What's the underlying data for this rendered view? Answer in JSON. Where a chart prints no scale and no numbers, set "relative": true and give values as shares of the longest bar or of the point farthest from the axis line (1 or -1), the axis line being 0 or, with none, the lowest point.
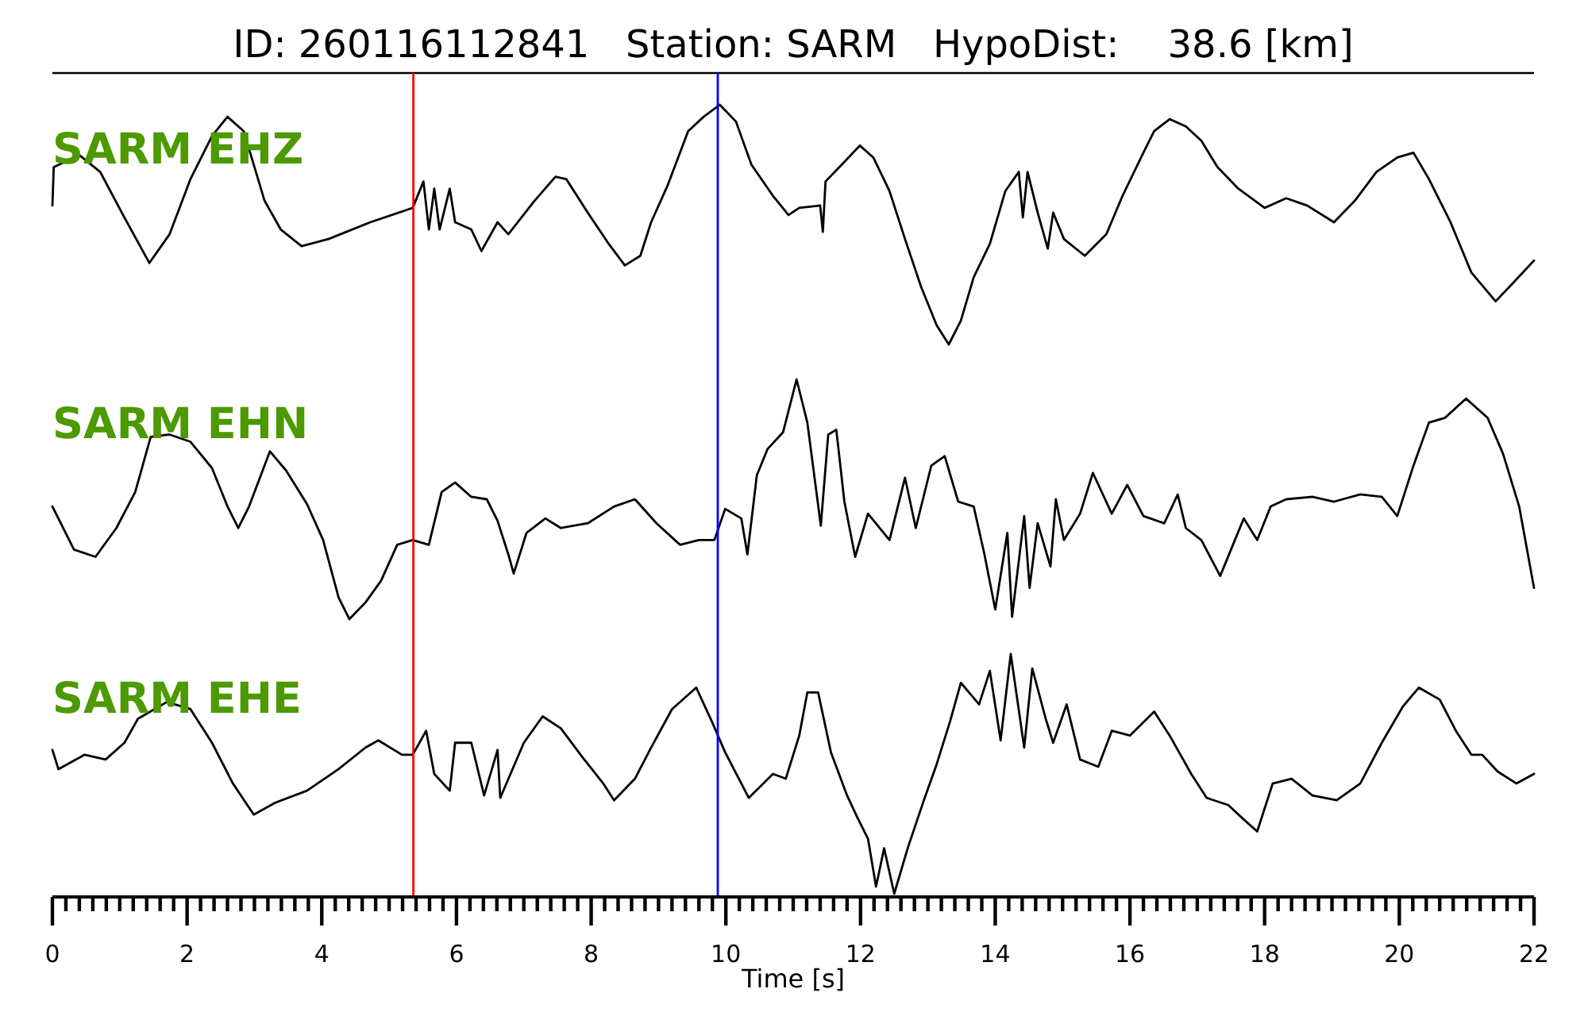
{
  "chart_data": [
    {
      "type": "line",
      "title": "ID: 260116112841   Station: SARM   HypoDist:    38.6 [km]",
      "annotations": [
        "SARM EHZ"
      ],
      "relative": true,
      "xlim": [
        0,
        22
      ],
      "tick_labels": false,
      "series": [
        {
          "color": "#000000",
          "x": [
            0,
            0.02,
            0.4,
            0.71,
            1.03,
            1.44,
            1.74,
            2.05,
            2.37,
            2.6,
            2.84,
            3.15,
            3.39,
            3.7,
            4.1,
            4.72,
            5.35,
            5.51,
            5.59,
            5.67,
            5.75,
            5.9,
            5.98,
            6.22,
            6.37,
            6.61,
            6.77,
            7.16,
            7.47,
            7.63,
            7.95,
            8.26,
            8.5,
            8.73,
            8.89,
            9.13,
            9.44,
            9.67,
            9.91,
            10.15,
            10.38,
            10.7,
            10.93,
            11.09,
            11.4,
            11.44,
            11.48,
            11.72,
            11.99,
            12.19,
            12.43,
            12.66,
            12.9,
            13.13,
            13.31,
            13.49,
            13.68,
            13.92,
            14.15,
            14.35,
            14.41,
            14.48,
            14.63,
            14.78,
            14.86,
            15.02,
            15.33,
            15.65,
            15.89,
            16.2,
            16.36,
            16.59,
            16.83,
            17.06,
            17.3,
            17.61,
            18.0,
            18.32,
            18.63,
            19.03,
            19.34,
            19.66,
            19.97,
            20.21,
            20.44,
            20.76,
            21.07,
            21.43,
            21.7,
            22
          ],
          "values": [
            0.58,
            0.74,
            0.79,
            0.72,
            0.55,
            0.34,
            0.46,
            0.69,
            0.87,
            0.95,
            0.89,
            0.6,
            0.48,
            0.41,
            0.44,
            0.51,
            0.57,
            0.68,
            0.48,
            0.65,
            0.48,
            0.65,
            0.51,
            0.48,
            0.39,
            0.51,
            0.46,
            0.6,
            0.7,
            0.69,
            0.55,
            0.42,
            0.33,
            0.37,
            0.51,
            0.66,
            0.89,
            0.95,
            1,
            0.93,
            0.75,
            0.62,
            0.54,
            0.57,
            0.58,
            0.47,
            0.68,
            0.75,
            0.83,
            0.78,
            0.64,
            0.44,
            0.24,
            0.08,
            0,
            0.1,
            0.28,
            0.42,
            0.64,
            0.72,
            0.53,
            0.72,
            0.55,
            0.4,
            0.55,
            0.44,
            0.37,
            0.46,
            0.62,
            0.8,
            0.89,
            0.94,
            0.91,
            0.85,
            0.74,
            0.65,
            0.57,
            0.61,
            0.58,
            0.51,
            0.6,
            0.72,
            0.78,
            0.8,
            0.69,
            0.51,
            0.3,
            0.18,
            0.26,
            0.35
          ]
        }
      ],
      "ref_lines": [
        {
          "axis": "x",
          "value": 5.36,
          "color": "#ff0000"
        },
        {
          "axis": "x",
          "value": 9.88,
          "color": "#0000ff"
        }
      ]
    },
    {
      "type": "line",
      "annotations": [
        "SARM EHN"
      ],
      "relative": true,
      "xlim": [
        0,
        22
      ],
      "tick_labels": false,
      "series": [
        {
          "color": "#000000",
          "x": [
            0,
            0.32,
            0.64,
            0.95,
            1.23,
            1.46,
            1.74,
            2.05,
            2.37,
            2.6,
            2.76,
            2.92,
            3.23,
            3.47,
            3.78,
            4.02,
            4.25,
            4.41,
            4.65,
            4.88,
            5.12,
            5.35,
            5.59,
            5.78,
            5.98,
            6.22,
            6.45,
            6.61,
            6.77,
            6.85,
            7.04,
            7.32,
            7.55,
            7.95,
            8.34,
            8.65,
            8.97,
            9.32,
            9.6,
            9.83,
            9.99,
            10.23,
            10.32,
            10.46,
            10.62,
            10.85,
            11.05,
            11.21,
            11.41,
            11.52,
            11.64,
            11.76,
            11.92,
            12.11,
            12.43,
            12.66,
            12.82,
            13.05,
            13.25,
            13.45,
            13.68,
            13.84,
            14.0,
            14.18,
            14.25,
            14.43,
            14.51,
            14.63,
            14.82,
            14.9,
            15.02,
            15.26,
            15.45,
            15.73,
            15.96,
            16.2,
            16.51,
            16.71,
            16.83,
            17.06,
            17.34,
            17.53,
            17.69,
            17.89,
            18.09,
            18.32,
            18.71,
            19.03,
            19.42,
            19.74,
            19.97,
            20.21,
            20.44,
            20.68,
            20.99,
            21.31,
            21.54,
            21.78,
            22
          ],
          "values": [
            0.47,
            0.29,
            0.26,
            0.38,
            0.53,
            0.76,
            0.77,
            0.74,
            0.63,
            0.47,
            0.38,
            0.47,
            0.7,
            0.62,
            0.48,
            0.33,
            0.09,
            0,
            0.07,
            0.16,
            0.31,
            0.33,
            0.31,
            0.53,
            0.57,
            0.51,
            0.5,
            0.41,
            0.27,
            0.19,
            0.36,
            0.42,
            0.38,
            0.4,
            0.47,
            0.5,
            0.4,
            0.31,
            0.33,
            0.33,
            0.46,
            0.42,
            0.27,
            0.6,
            0.71,
            0.78,
            1,
            0.82,
            0.39,
            0.77,
            0.79,
            0.49,
            0.26,
            0.44,
            0.33,
            0.59,
            0.38,
            0.64,
            0.68,
            0.49,
            0.47,
            0.27,
            0.04,
            0.36,
            0.01,
            0.43,
            0.13,
            0.4,
            0.22,
            0.5,
            0.33,
            0.44,
            0.61,
            0.44,
            0.56,
            0.43,
            0.4,
            0.52,
            0.38,
            0.33,
            0.18,
            0.31,
            0.42,
            0.33,
            0.47,
            0.5,
            0.51,
            0.49,
            0.52,
            0.51,
            0.43,
            0.64,
            0.82,
            0.84,
            0.92,
            0.84,
            0.69,
            0.47,
            0.13
          ]
        }
      ],
      "ref_lines": [
        {
          "axis": "x",
          "value": 5.36,
          "color": "#ff0000"
        },
        {
          "axis": "x",
          "value": 9.88,
          "color": "#0000ff"
        }
      ]
    },
    {
      "type": "line",
      "annotations": [
        "SARM EHE"
      ],
      "relative": true,
      "xlim": [
        0,
        22
      ],
      "xlabel": "Time [s]",
      "xticks": [
        0,
        {
          "value": 0.2,
          "label": null
        },
        {
          "value": 0.4,
          "label": null
        },
        {
          "value": 0.6,
          "label": null
        },
        {
          "value": 0.8,
          "label": null
        },
        {
          "value": 1,
          "label": null
        },
        {
          "value": 1.2,
          "label": null
        },
        {
          "value": 1.4,
          "label": null
        },
        {
          "value": 1.6,
          "label": null
        },
        {
          "value": 1.8,
          "label": null
        },
        2,
        {
          "value": 2.2,
          "label": null
        },
        {
          "value": 2.4,
          "label": null
        },
        {
          "value": 2.6,
          "label": null
        },
        {
          "value": 2.8,
          "label": null
        },
        {
          "value": 3,
          "label": null
        },
        {
          "value": 3.2,
          "label": null
        },
        {
          "value": 3.4,
          "label": null
        },
        {
          "value": 3.6,
          "label": null
        },
        {
          "value": 3.8,
          "label": null
        },
        4,
        {
          "value": 4.2,
          "label": null
        },
        {
          "value": 4.4,
          "label": null
        },
        {
          "value": 4.6,
          "label": null
        },
        {
          "value": 4.8,
          "label": null
        },
        {
          "value": 5,
          "label": null
        },
        {
          "value": 5.2,
          "label": null
        },
        {
          "value": 5.4,
          "label": null
        },
        {
          "value": 5.6,
          "label": null
        },
        {
          "value": 5.8,
          "label": null
        },
        6,
        {
          "value": 6.2,
          "label": null
        },
        {
          "value": 6.4,
          "label": null
        },
        {
          "value": 6.6,
          "label": null
        },
        {
          "value": 6.8,
          "label": null
        },
        {
          "value": 7,
          "label": null
        },
        {
          "value": 7.2,
          "label": null
        },
        {
          "value": 7.4,
          "label": null
        },
        {
          "value": 7.6,
          "label": null
        },
        {
          "value": 7.8,
          "label": null
        },
        8,
        {
          "value": 8.2,
          "label": null
        },
        {
          "value": 8.4,
          "label": null
        },
        {
          "value": 8.6,
          "label": null
        },
        {
          "value": 8.8,
          "label": null
        },
        {
          "value": 9,
          "label": null
        },
        {
          "value": 9.2,
          "label": null
        },
        {
          "value": 9.4,
          "label": null
        },
        {
          "value": 9.6,
          "label": null
        },
        {
          "value": 9.8,
          "label": null
        },
        10,
        {
          "value": 10.2,
          "label": null
        },
        {
          "value": 10.4,
          "label": null
        },
        {
          "value": 10.6,
          "label": null
        },
        {
          "value": 10.8,
          "label": null
        },
        {
          "value": 11,
          "label": null
        },
        {
          "value": 11.2,
          "label": null
        },
        {
          "value": 11.4,
          "label": null
        },
        {
          "value": 11.6,
          "label": null
        },
        {
          "value": 11.8,
          "label": null
        },
        12,
        {
          "value": 12.2,
          "label": null
        },
        {
          "value": 12.4,
          "label": null
        },
        {
          "value": 12.6,
          "label": null
        },
        {
          "value": 12.8,
          "label": null
        },
        {
          "value": 13,
          "label": null
        },
        {
          "value": 13.2,
          "label": null
        },
        {
          "value": 13.4,
          "label": null
        },
        {
          "value": 13.6,
          "label": null
        },
        {
          "value": 13.8,
          "label": null
        },
        14,
        {
          "value": 14.2,
          "label": null
        },
        {
          "value": 14.4,
          "label": null
        },
        {
          "value": 14.6,
          "label": null
        },
        {
          "value": 14.8,
          "label": null
        },
        {
          "value": 15,
          "label": null
        },
        {
          "value": 15.2,
          "label": null
        },
        {
          "value": 15.4,
          "label": null
        },
        {
          "value": 15.6,
          "label": null
        },
        {
          "value": 15.8,
          "label": null
        },
        16,
        {
          "value": 16.2,
          "label": null
        },
        {
          "value": 16.4,
          "label": null
        },
        {
          "value": 16.6,
          "label": null
        },
        {
          "value": 16.8,
          "label": null
        },
        {
          "value": 17,
          "label": null
        },
        {
          "value": 17.2,
          "label": null
        },
        {
          "value": 17.4,
          "label": null
        },
        {
          "value": 17.6,
          "label": null
        },
        {
          "value": 17.8,
          "label": null
        },
        18,
        {
          "value": 18.2,
          "label": null
        },
        {
          "value": 18.4,
          "label": null
        },
        {
          "value": 18.6,
          "label": null
        },
        {
          "value": 18.8,
          "label": null
        },
        {
          "value": 19,
          "label": null
        },
        {
          "value": 19.2,
          "label": null
        },
        {
          "value": 19.4,
          "label": null
        },
        {
          "value": 19.6,
          "label": null
        },
        {
          "value": 19.8,
          "label": null
        },
        20,
        {
          "value": 20.2,
          "label": null
        },
        {
          "value": 20.4,
          "label": null
        },
        {
          "value": 20.6,
          "label": null
        },
        {
          "value": 20.8,
          "label": null
        },
        {
          "value": 21,
          "label": null
        },
        {
          "value": 21.2,
          "label": null
        },
        {
          "value": 21.4,
          "label": null
        },
        {
          "value": 21.6,
          "label": null
        },
        {
          "value": 21.8,
          "label": null
        },
        22
      ],
      "series": [
        {
          "color": "#000000",
          "x": [
            0,
            0.09,
            0.48,
            0.79,
            1.07,
            1.27,
            1.7,
            2.05,
            2.37,
            2.68,
            2.99,
            3.31,
            3.78,
            4.25,
            4.65,
            4.84,
            5.19,
            5.35,
            5.55,
            5.67,
            5.9,
            5.98,
            6.22,
            6.41,
            6.61,
            6.65,
            7.0,
            7.28,
            7.55,
            7.87,
            8.18,
            8.34,
            8.65,
            8.89,
            9.2,
            9.56,
            9.79,
            9.99,
            10.34,
            10.7,
            10.89,
            11.09,
            11.21,
            11.37,
            11.56,
            11.8,
            11.95,
            12.11,
            12.23,
            12.35,
            12.5,
            12.7,
            12.94,
            13.13,
            13.33,
            13.49,
            13.76,
            13.92,
            14.08,
            14.23,
            14.43,
            14.55,
            14.75,
            14.86,
            15.06,
            15.26,
            15.53,
            15.73,
            16.0,
            16.36,
            16.59,
            16.91,
            17.14,
            17.46,
            17.69,
            17.89,
            18.12,
            18.4,
            18.71,
            19.07,
            19.42,
            19.74,
            20.05,
            20.29,
            20.6,
            20.84,
            21.07,
            21.23,
            21.46,
            21.74,
            22
          ],
          "values": [
            0.6,
            0.52,
            0.58,
            0.56,
            0.63,
            0.73,
            0.8,
            0.77,
            0.63,
            0.46,
            0.33,
            0.38,
            0.43,
            0.52,
            0.61,
            0.64,
            0.58,
            0.58,
            0.68,
            0.5,
            0.43,
            0.63,
            0.63,
            0.41,
            0.6,
            0.4,
            0.63,
            0.74,
            0.69,
            0.57,
            0.46,
            0.39,
            0.48,
            0.61,
            0.77,
            0.86,
            0.72,
            0.59,
            0.4,
            0.5,
            0.48,
            0.66,
            0.84,
            0.84,
            0.59,
            0.41,
            0.32,
            0.23,
            0.03,
            0.19,
            0,
            0.19,
            0.39,
            0.54,
            0.72,
            0.88,
            0.79,
            0.93,
            0.64,
            1,
            0.61,
            0.94,
            0.73,
            0.63,
            0.79,
            0.56,
            0.53,
            0.68,
            0.66,
            0.76,
            0.66,
            0.5,
            0.4,
            0.37,
            0.31,
            0.26,
            0.46,
            0.48,
            0.41,
            0.39,
            0.46,
            0.63,
            0.78,
            0.86,
            0.81,
            0.68,
            0.58,
            0.58,
            0.51,
            0.46,
            0.5
          ]
        }
      ],
      "ref_lines": [
        {
          "axis": "x",
          "value": 5.36,
          "color": "#ff0000"
        },
        {
          "axis": "x",
          "value": 9.88,
          "color": "#0000ff"
        }
      ]
    }
  ]
}
